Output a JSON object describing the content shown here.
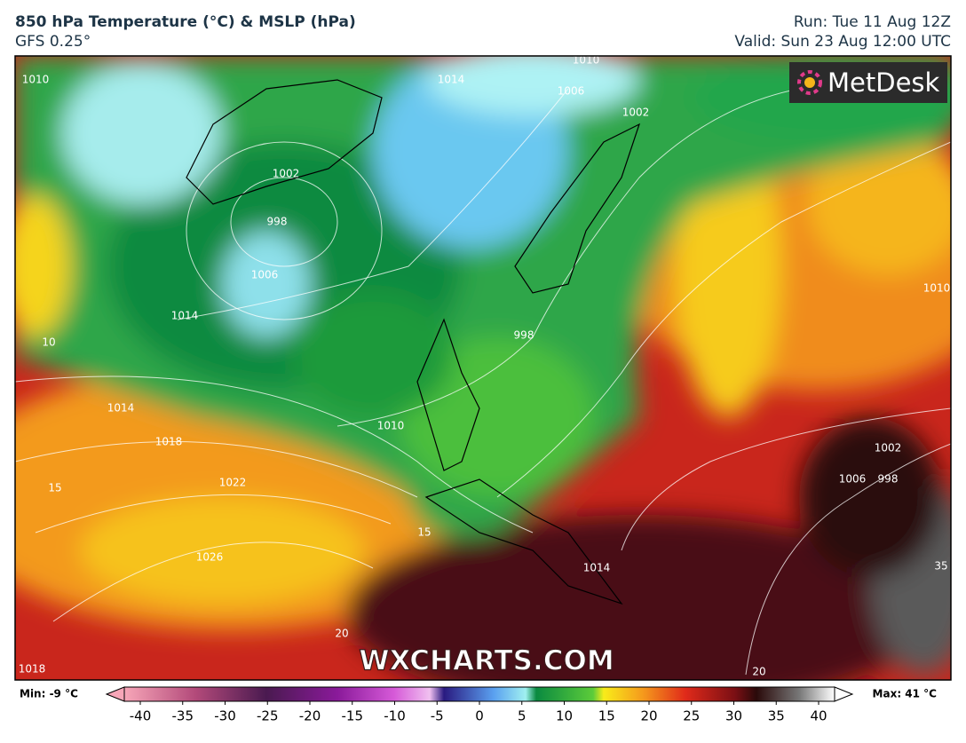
{
  "header": {
    "title": "850 hPa Temperature (°C) & MSLP (hPa)",
    "subtitle": "GFS 0.25°",
    "run": "Run: Tue 11 Aug 12Z",
    "valid": "Valid: Sun 23 Aug 12:00 UTC"
  },
  "map": {
    "logo": "MetDesk",
    "watermark": "WXCHARTS.COM",
    "contour_labels": [
      "1010",
      "1014",
      "1002",
      "998",
      "1006",
      "1014",
      "1010",
      "1014",
      "1018",
      "1022",
      "1026",
      "1018",
      "1010",
      "998",
      "1010",
      "1006",
      "1002",
      "998",
      "1014",
      "1006",
      "1002",
      "10",
      "15",
      "15",
      "20",
      "20",
      "35"
    ]
  },
  "colorbar": {
    "min_label": "Min: -9 °C",
    "max_label": "Max: 41 °C",
    "ticks": [
      -40,
      -35,
      -30,
      -25,
      -20,
      -15,
      -10,
      -5,
      0,
      5,
      10,
      15,
      20,
      25,
      30,
      35,
      40
    ]
  }
}
